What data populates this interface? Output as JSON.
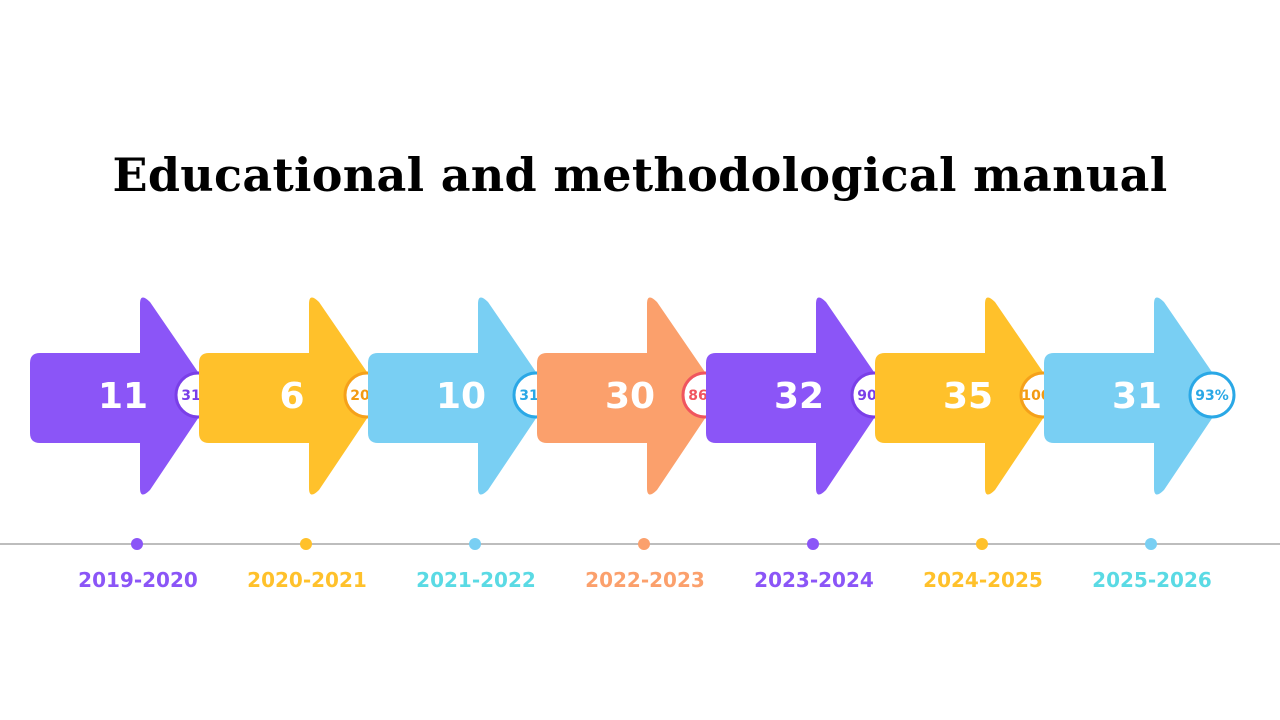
{
  "title": "Educational and methodological manual",
  "steps": [
    {
      "value": "11",
      "percent": "31%",
      "year": "2019-2020",
      "color": "#8B55F7",
      "badge_text_color": "#7A3FE8",
      "badge_border": "#7A3FE8",
      "label_color": "#8B55F7"
    },
    {
      "value": "6",
      "percent": "20%",
      "year": "2020-2021",
      "color": "#FFC12B",
      "badge_text_color": "#F39A12",
      "badge_border": "#F5A11A",
      "label_color": "#FFC12B"
    },
    {
      "value": "10",
      "percent": "31%",
      "year": "2021-2022",
      "color": "#79CFF3",
      "badge_text_color": "#2AA8E6",
      "badge_border": "#2AA8E6",
      "label_color": "#5ADAE4"
    },
    {
      "value": "30",
      "percent": "86%",
      "year": "2022-2023",
      "color": "#FBA06C",
      "badge_text_color": "#F0555E",
      "badge_border": "#F0555E",
      "label_color": "#FBA06C"
    },
    {
      "value": "32",
      "percent": "90%",
      "year": "2023-2024",
      "color": "#8B55F7",
      "badge_text_color": "#7A3FE8",
      "badge_border": "#7A3FE8",
      "label_color": "#8B55F7"
    },
    {
      "value": "35",
      "percent": "100%",
      "year": "2024-2025",
      "color": "#FFC12B",
      "badge_text_color": "#F39A12",
      "badge_border": "#F5A11A",
      "label_color": "#FFC12B"
    },
    {
      "value": "31",
      "percent": "93%",
      "year": "2025-2026",
      "color": "#79CFF3",
      "badge_text_color": "#2AA8E6",
      "badge_border": "#2AA8E6",
      "label_color": "#5ADAE4"
    }
  ],
  "timeline_color": "#BDBDBD"
}
